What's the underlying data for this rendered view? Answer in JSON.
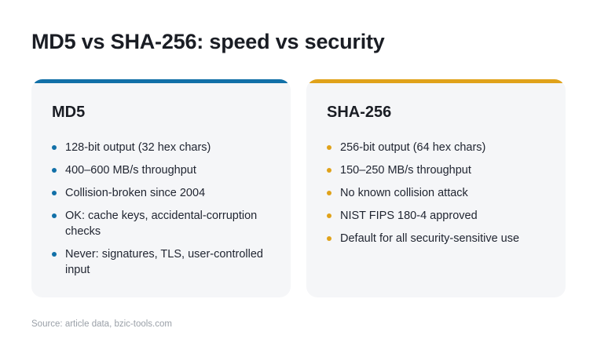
{
  "title": "MD5 vs SHA-256: speed vs security",
  "colors": {
    "md5_accent": "#1170a8",
    "sha_accent": "#e0a21a"
  },
  "cards": [
    {
      "heading": "MD5",
      "items": [
        "128-bit output (32 hex chars)",
        "400–600 MB/s throughput",
        "Collision-broken since 2004",
        "OK: cache keys, accidental-corruption checks",
        "Never: signatures, TLS, user-controlled input"
      ]
    },
    {
      "heading": "SHA-256",
      "items": [
        "256-bit output (64 hex chars)",
        "150–250 MB/s throughput",
        "No known collision attack",
        "NIST FIPS 180-4 approved",
        "Default for all security-sensitive use"
      ]
    }
  ],
  "source": "Source: article data, bzic-tools.com"
}
